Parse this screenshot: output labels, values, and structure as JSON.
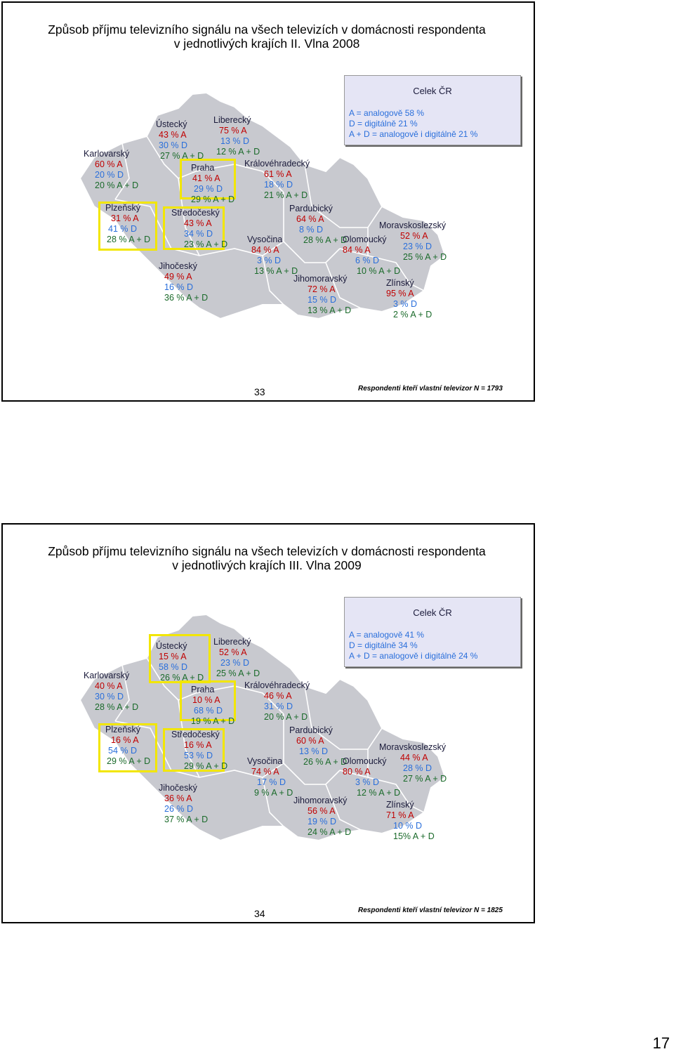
{
  "slides": [
    {
      "title_line1": "Způsob příjmu televizního signálu na všech televizích v domácnosti respondenta",
      "title_line2_prefix": "v jednotlivých krajích",
      "title_line2_wave": "II. Vlna 2008",
      "celek": {
        "title": "Celek ČR",
        "line1": "A = analogově 58 %",
        "line2": "D = digitálně 21 %",
        "line3": "A + D = analogově i digitálně 21 %"
      },
      "regions": {
        "karlovarsky": {
          "name": "Karlovarský",
          "a": "60 % A",
          "d": "20 % D",
          "ad": "20 % A + D"
        },
        "ustecky": {
          "name": "Ústecký",
          "a": "43 % A",
          "d": "30 % D",
          "ad": "27 % A + D"
        },
        "liberecky": {
          "name": "Liberecký",
          "a": "75 % A",
          "d": "13 % D",
          "ad": "12 % A + D"
        },
        "praha": {
          "name": "Praha",
          "a": "41 % A",
          "d": "29 % D",
          "ad": "29 % A + D"
        },
        "kralovehradecky": {
          "name": "Královéhradecký",
          "a": "61 % A",
          "d": "18 % D",
          "ad": "21 % A + D"
        },
        "plzensky": {
          "name": "Plzeňský",
          "a": "31 % A",
          "d": "41 % D",
          "ad": "28 % A + D"
        },
        "stredocesky": {
          "name": "Středočeský",
          "a": "43 % A",
          "d": "34 % D",
          "ad": "23 % A + D"
        },
        "pardubicky": {
          "name": "Pardubický",
          "a": "64 % A",
          "d": "8 % D",
          "ad": "28 % A + D"
        },
        "moravskoslezsky": {
          "name": "Moravskoslezský",
          "a": "52 % A",
          "d": "23 % D",
          "ad": "25 % A + D"
        },
        "vysocina": {
          "name": "Vysočina",
          "a": "84 % A",
          "d": "3 % D",
          "ad": "13 % A + D"
        },
        "olomoucky": {
          "name": "Olomoucký",
          "a": "84 % A",
          "d": "6 % D",
          "ad": "10 % A + D"
        },
        "jihocesky": {
          "name": "Jihočeský",
          "a": "49 % A",
          "d": "16 % D",
          "ad": "36 % A + D"
        },
        "jihomoravsky": {
          "name": "Jihomoravský",
          "a": "72 % A",
          "d": "15 % D",
          "ad": "13 % A + D"
        },
        "zlinsky": {
          "name": "Zlínský",
          "a": "95 % A",
          "d": "3 % D",
          "ad": "2 % A + D"
        }
      },
      "page_number": "33",
      "note": "Respondenti kteří vlastní televizor N = 1793"
    },
    {
      "title_line1": "Způsob příjmu televizního signálu na všech televizích v domácnosti respondenta",
      "title_line2_prefix": "v jednotlivých krajích",
      "title_line2_wave": "III. Vlna 2009",
      "celek": {
        "title": "Celek ČR",
        "line1": "A = analogově  41 %",
        "line2": "D = digitálně  34 %",
        "line3": "A + D = analogově i digitálně  24 %"
      },
      "regions": {
        "karlovarsky": {
          "name": "Karlovarský",
          "a": "40 % A",
          "d": "30 % D",
          "ad": "28 % A + D"
        },
        "ustecky": {
          "name": "Ústecký",
          "a": "15 % A",
          "d": "58 % D",
          "ad": "26 % A + D"
        },
        "liberecky": {
          "name": "Liberecký",
          "a": "52 % A",
          "d": "23 % D",
          "ad": "25 % A + D"
        },
        "praha": {
          "name": "Praha",
          "a": "10 % A",
          "d": "68 % D",
          "ad": "19 % A + D"
        },
        "kralovehradecky": {
          "name": "Královéhradecký",
          "a": "46 % A",
          "d": "31 % D",
          "ad": "20 % A + D"
        },
        "plzensky": {
          "name": "Plzeňský",
          "a": "16 % A",
          "d": "54 % D",
          "ad": "29 % A + D"
        },
        "stredocesky": {
          "name": "Středočeský",
          "a": "16 % A",
          "d": "53 % D",
          "ad": "29 % A + D"
        },
        "pardubicky": {
          "name": "Pardubický",
          "a": "60 % A",
          "d": "13 % D",
          "ad": "26 % A + D"
        },
        "moravskoslezsky": {
          "name": "Moravskoslezský",
          "a": "44 % A",
          "d": "28 % D",
          "ad": "27 % A + D"
        },
        "vysocina": {
          "name": "Vysočina",
          "a": "74 % A",
          "d": "17 % D",
          "ad": "9 % A + D"
        },
        "olomoucky": {
          "name": "Olomoucký",
          "a": "80 % A",
          "d": "3 % D",
          "ad": "12 % A + D"
        },
        "jihocesky": {
          "name": "Jihočeský",
          "a": "36 % A",
          "d": "26 % D",
          "ad": "37 % A + D"
        },
        "jihomoravsky": {
          "name": "Jihomoravský",
          "a": "56 % A",
          "d": "19 % D",
          "ad": "24 % A + D"
        },
        "zlinsky": {
          "name": "Zlínský",
          "a": "71 % A",
          "d": "10 % D",
          "ad": "15% A + D"
        }
      },
      "page_number": "34",
      "note": "Respondenti kteří vlastní televizor N = 1825"
    }
  ],
  "colors": {
    "analog": "#c00000",
    "digital": "#2a6fdb",
    "both": "#1a6a2a",
    "map_fill": "#c8c9cf",
    "highlight": "#f2e600"
  },
  "page_footer": "17"
}
